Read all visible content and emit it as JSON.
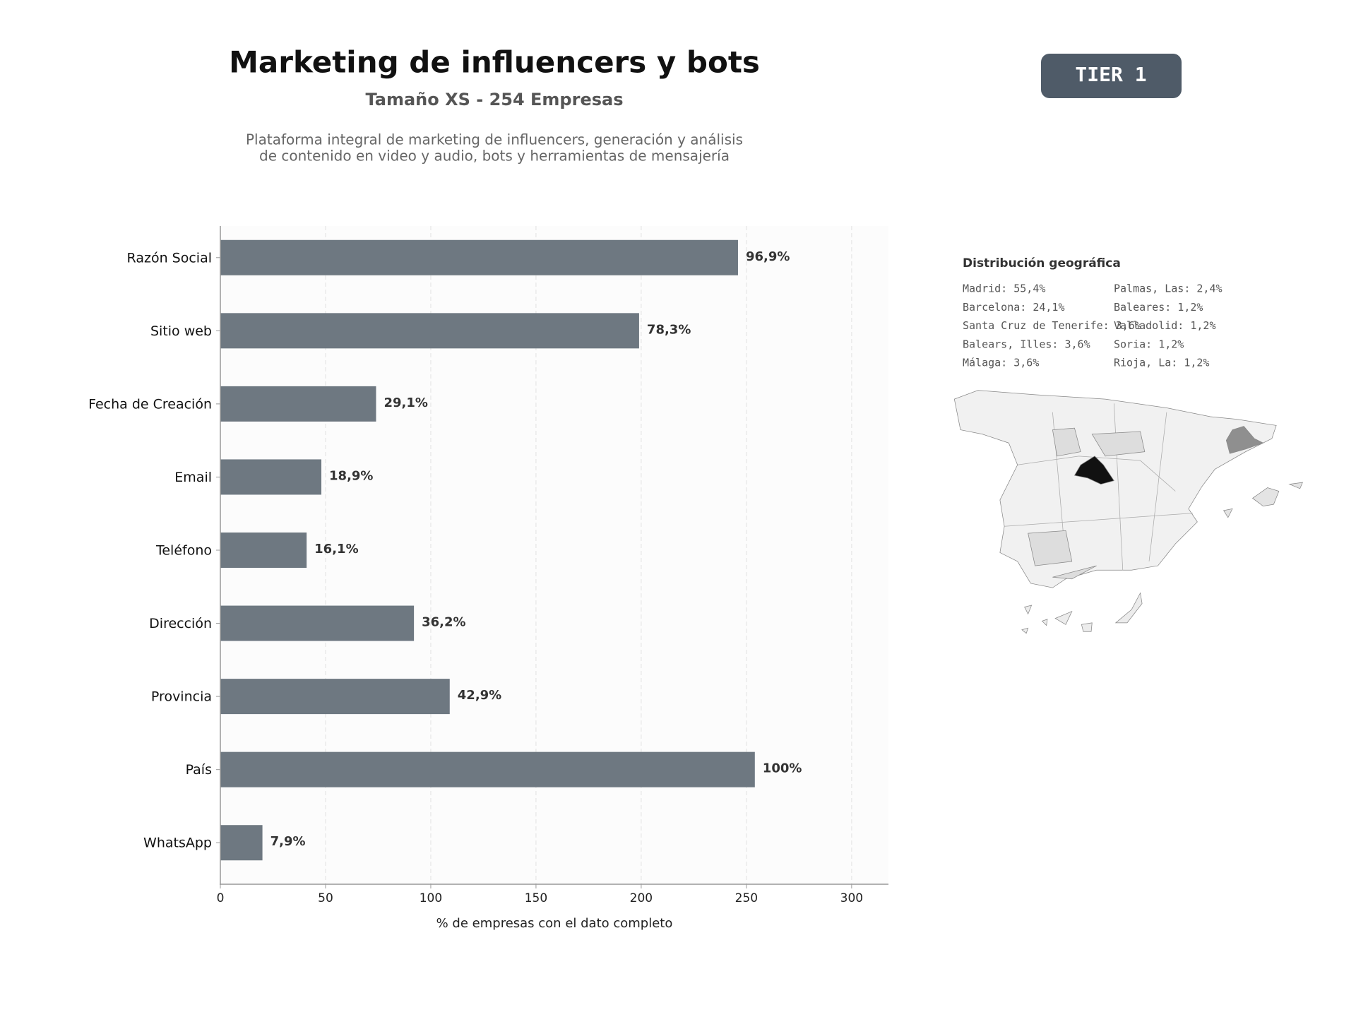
{
  "chart_data": {
    "type": "bar",
    "orientation": "horizontal",
    "title": "Marketing de influencers y bots",
    "subtitle": "Tamaño XS - 254 Empresas",
    "description": [
      "Plataforma integral de marketing de influencers, generación y análisis",
      "de contenido en video y audio, bots y herramientas de mensajería"
    ],
    "x_label": "% de empresas con el dato completo",
    "categories": [
      "Razón Social",
      "Sitio web",
      "Fecha de Creación",
      "Email",
      "Teléfono",
      "Dirección",
      "Provincia",
      "País",
      "WhatsApp"
    ],
    "values": [
      246,
      199,
      74,
      48,
      41,
      92,
      109,
      254,
      20
    ],
    "value_labels": [
      "96,9%",
      "78,3%",
      "29,1%",
      "18,9%",
      "16,1%",
      "36,2%",
      "42,9%",
      "100%",
      "7,9%"
    ],
    "color": "#6e7881",
    "xlim": [
      0,
      317.5
    ],
    "xticks": [
      0,
      50,
      100,
      150,
      200,
      250,
      300
    ],
    "grid": true
  },
  "badge": "TIER 1",
  "map_panel": {
    "title": "Distribución geográfica",
    "entries": [
      "Madrid: 55,4%",
      "Barcelona: 24,1%",
      "Santa Cruz de Tenerife: 3,6%",
      "Balears, Illes: 3,6%",
      "Málaga: 3,6%",
      "Palmas, Las: 2,4%",
      "Baleares: 1,2%",
      "Valladolid: 1,2%",
      "Soria: 1,2%",
      "Rioja, La: 1,2%"
    ]
  }
}
